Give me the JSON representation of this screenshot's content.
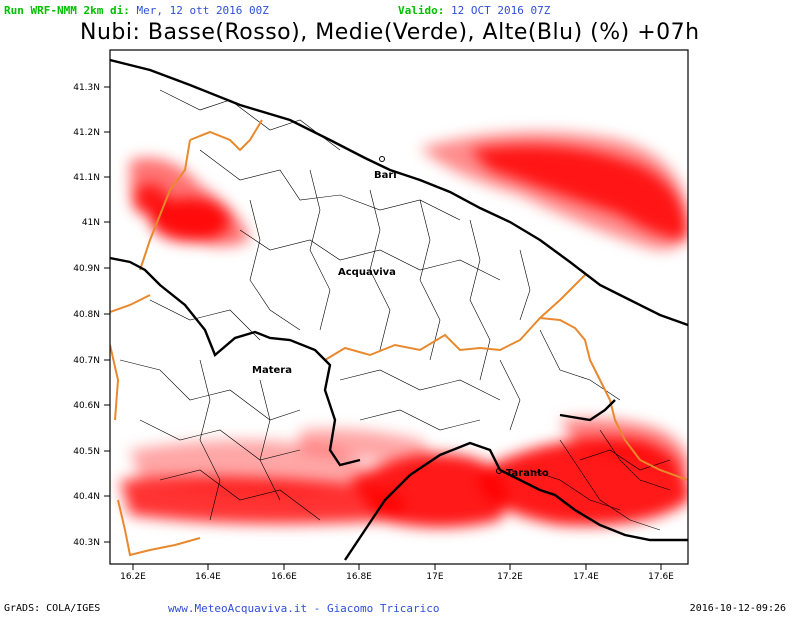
{
  "header": {
    "run_label": "Run WRF-NMM 2km di:",
    "run_date": "Mer, 12 ott 2016 00Z",
    "valid_label": "Valido:",
    "valid_date": "12 OCT 2016 07Z"
  },
  "title": "Nubi: Basse(Rosso), Medie(Verde), Alte(Blu) (%) +07h",
  "axes": {
    "y_ticks": [
      "41.3N",
      "41.2N",
      "41.1N",
      "41N",
      "40.9N",
      "40.8N",
      "40.7N",
      "40.6N",
      "40.5N",
      "40.4N",
      "40.3N"
    ],
    "x_ticks": [
      "16.2E",
      "16.4E",
      "16.6E",
      "16.8E",
      "17E",
      "17.2E",
      "17.4E",
      "17.6E"
    ]
  },
  "cities": [
    {
      "name": "Bari"
    },
    {
      "name": "Acquaviva"
    },
    {
      "name": "Matera"
    },
    {
      "name": "Taranto"
    }
  ],
  "colors": {
    "low_clouds": "#ff0000",
    "provincial_border": "#e8892e",
    "coast": "#000000"
  },
  "footer": {
    "left": "GrADS: COLA/IGES",
    "center": "www.MeteoAcquaviva.it - Giacomo Tricarico",
    "right": "2016-10-12-09:26"
  }
}
